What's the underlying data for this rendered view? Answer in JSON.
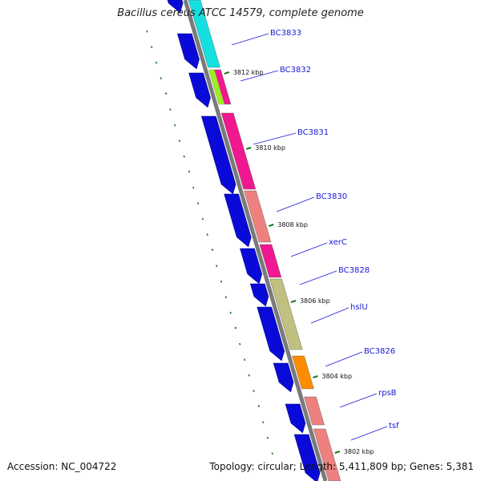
{
  "title": "Bacillus cereus ATCC 14579, complete genome",
  "footer": {
    "accession": "Accession: NC_004722",
    "summary": "Topology: circular; Length: 5,411,809 bp; Genes: 5,381"
  },
  "colors": {
    "orf": "#0a0ad8",
    "backbone": "#7a7a7a",
    "label": "#1a1ad6",
    "tick": "#1f7a1f"
  },
  "gene_labels": [
    {
      "name": "BC3833",
      "color": "#14e0e0"
    },
    {
      "name": "BC3832",
      "color": "#f01890"
    },
    {
      "name": "BC3831",
      "color": "#f01890"
    },
    {
      "name": "BC3830",
      "color": "#ee8080"
    },
    {
      "name": "xerC",
      "color": "#f01890"
    },
    {
      "name": "BC3828",
      "color": "#c0c080"
    },
    {
      "name": "hslU",
      "color": "#c0c080"
    },
    {
      "name": "BC3826",
      "color": "#ff8c00"
    },
    {
      "name": "rpsB",
      "color": "#ee8080"
    },
    {
      "name": "tsf",
      "color": "#ee8080"
    }
  ],
  "kbp_labels": [
    "3812 kbp",
    "3810 kbp",
    "3808 kbp",
    "3806 kbp",
    "3804 kbp",
    "3802 kbp"
  ]
}
